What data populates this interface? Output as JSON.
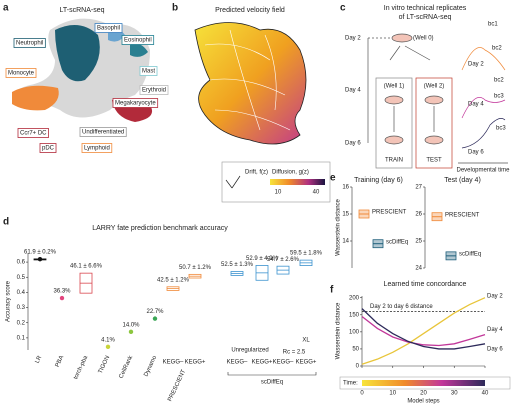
{
  "panels": {
    "a": {
      "letter": "a",
      "title": "LT-scRNA-seq",
      "cell_types": [
        "Neutrophil",
        "Basophil",
        "Eosinophil",
        "Mast",
        "Erythroid",
        "Megakaryocyte",
        "Monocyte",
        "Ccr7+ DC",
        "Undifferentiated",
        "pDC",
        "Lymphoid"
      ]
    },
    "b": {
      "letter": "b",
      "title": "Predicted velocity field",
      "drift_label": "Drift, f(z)",
      "diffusion_label": "Diffusion, g(z)",
      "scale_ticks": [
        10,
        40
      ]
    },
    "c": {
      "letter": "c",
      "title": [
        "In vitro technical replicates",
        "of LT-scRNA-seq"
      ],
      "days": [
        "Day 2",
        "Day 4",
        "Day 6"
      ],
      "wells": [
        "(Well 0)",
        "(Well 1)",
        "(Well 2)"
      ],
      "splits": [
        "TRAIN",
        "TEST"
      ],
      "curve_labels": [
        "Day 2",
        "Day 4",
        "Day 6"
      ],
      "barcodes": [
        "bc1",
        "bc2",
        "bc2",
        "bc3",
        "bc3"
      ],
      "time_label": "Developmental time"
    }
  },
  "chart_data": [
    {
      "type": "dot",
      "panel_label": "d",
      "title": "LARRY fate prediction benchmark accuracy",
      "y_label": "Accuracy score",
      "categories": [
        "LR",
        "PBA",
        "torch-pba",
        "TIGON",
        "CellRank",
        "Dynamo",
        "KEGG–",
        "KEGG+",
        "KEGG–",
        "KEGG+",
        "KEGG–",
        "KEGG+"
      ],
      "values": [
        0.619,
        0.363,
        0.461,
        0.041,
        0.14,
        0.227,
        0.425,
        0.507,
        0.525,
        0.529,
        0.547,
        0.595
      ],
      "errors": [
        0.002,
        null,
        0.066,
        null,
        null,
        null,
        0.012,
        0.012,
        0.013,
        0.049,
        0.026,
        0.018
      ],
      "value_labels": [
        "61.9 ± 0.2%",
        "36.3%",
        "46.1 ± 6.6%",
        "4.1%",
        "14.0%",
        "22.7%",
        "42.5 ± 1.2%",
        "50.7 ± 1.2%",
        "52.5 ± 1.3%",
        "52.9 ± 4.9%",
        "54.7 ± 2.6%",
        "59.5 ± 1.8%"
      ],
      "colors": [
        "#111111",
        "#e2457e",
        "#d9474f",
        "#c9d43a",
        "#8cc63f",
        "#3aa655",
        "#f08a3a",
        "#f08a3a",
        "#3d93cf",
        "#3d93cf",
        "#3d93cf",
        "#3d93cf"
      ],
      "groups": [
        "PRESCIENT",
        "Unregularized",
        "Rc = 2.5",
        "XL",
        "scDiffEq"
      ],
      "ylim": [
        0.02,
        0.66
      ],
      "yticks": [
        0.1,
        0.2,
        0.3,
        0.4,
        0.5,
        0.6
      ]
    },
    {
      "type": "box",
      "panel_label": "e",
      "title": "Training (day 6)",
      "y_label": "Wasserstein distance",
      "series": [
        {
          "name": "PRESCIENT",
          "color": "#f08a3a",
          "values": [
            15.0
          ]
        },
        {
          "name": "scDiffEq",
          "color": "#1f5f7a",
          "values": [
            13.9
          ]
        }
      ],
      "ylim": [
        13.0,
        16
      ],
      "yticks": [
        14,
        15,
        16
      ]
    },
    {
      "type": "box",
      "title": "Test (day 4)",
      "series": [
        {
          "name": "PRESCIENT",
          "color": "#f08a3a",
          "values": [
            25.9
          ]
        },
        {
          "name": "scDiffEq",
          "color": "#1f5f7a",
          "values": [
            24.45
          ]
        }
      ],
      "ylim": [
        24,
        27
      ],
      "yticks": [
        24,
        25,
        26,
        27
      ]
    },
    {
      "type": "line",
      "panel_label": "f",
      "title": "Learned time concordance",
      "y_label": "Wasserstein distance",
      "x_label": "Model steps",
      "colorbar_label": "Time:",
      "x": [
        0,
        5,
        10,
        15,
        20,
        25,
        30,
        35,
        40
      ],
      "series": [
        {
          "name": "Day 2",
          "color": "#e8c53a",
          "values": [
            5,
            20,
            40,
            65,
            95,
            125,
            155,
            180,
            200
          ]
        },
        {
          "name": "Day 4",
          "color": "#c2379a",
          "values": [
            145,
            110,
            85,
            70,
            62,
            60,
            65,
            78,
            92
          ]
        },
        {
          "name": "Day 6",
          "color": "#2d2a5a",
          "values": [
            168,
            125,
            95,
            72,
            57,
            50,
            50,
            57,
            65
          ]
        }
      ],
      "reference": {
        "label": "Day 2 to day 6 distance",
        "value": 160
      },
      "xlim": [
        0,
        40
      ],
      "xticks": [
        0,
        10,
        20,
        30,
        40
      ],
      "ylim": [
        0,
        205
      ],
      "yticks": [
        0,
        50,
        100,
        150,
        200
      ]
    }
  ]
}
